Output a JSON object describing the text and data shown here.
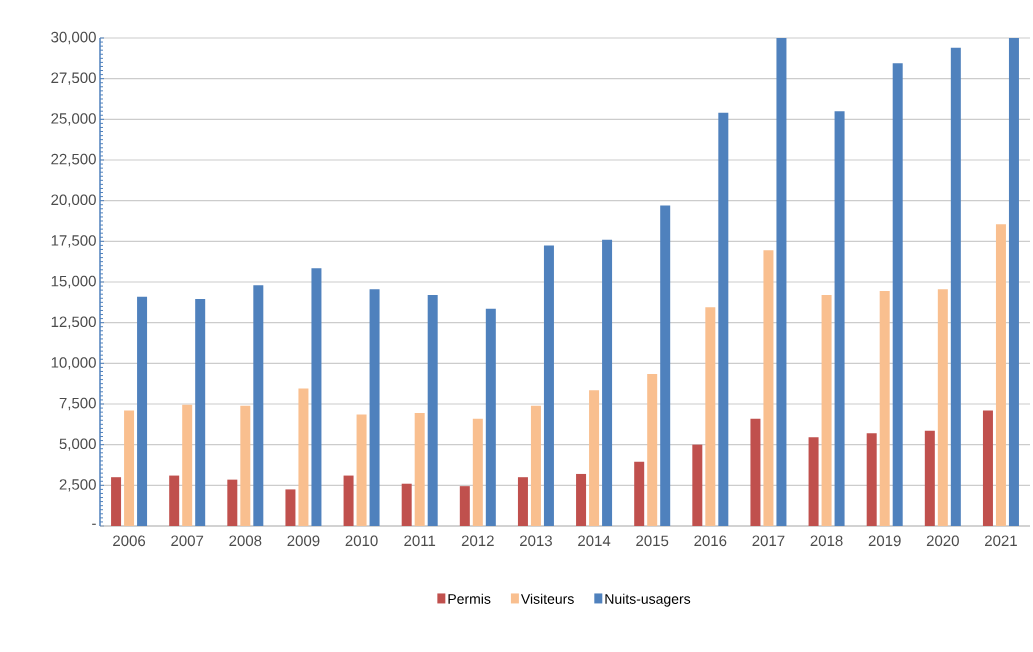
{
  "chart_data": {
    "type": "bar",
    "categories": [
      "2006",
      "2007",
      "2008",
      "2009",
      "2010",
      "2011",
      "2012",
      "2013",
      "2014",
      "2015",
      "2016",
      "2017",
      "2018",
      "2019",
      "2020",
      "2021"
    ],
    "series": [
      {
        "name": "Permis",
        "color": "#c0504d",
        "values": [
          3000,
          3100,
          2850,
          2250,
          3100,
          2600,
          2450,
          3000,
          3200,
          3950,
          5000,
          6600,
          5450,
          5700,
          5850,
          7100
        ]
      },
      {
        "name": "Visiteurs",
        "color": "#f9bf8f",
        "values": [
          7100,
          7450,
          7400,
          8450,
          6850,
          6950,
          6600,
          7400,
          8350,
          9350,
          13450,
          16950,
          14200,
          14450,
          14550,
          18550
        ]
      },
      {
        "name": "Nuits-usagers",
        "color": "#4f81bd",
        "values": [
          14100,
          13950,
          14800,
          15850,
          14550,
          14200,
          13350,
          17250,
          17600,
          19700,
          25400,
          30000,
          25500,
          28450,
          29400,
          30000
        ]
      }
    ],
    "ylim": [
      0,
      30000
    ],
    "yticks": [
      {
        "value": 0,
        "label": "-"
      },
      {
        "value": 2500,
        "label": "2,500"
      },
      {
        "value": 5000,
        "label": "5,000"
      },
      {
        "value": 7500,
        "label": "7,500"
      },
      {
        "value": 10000,
        "label": "10,000"
      },
      {
        "value": 12500,
        "label": "12,500"
      },
      {
        "value": 15000,
        "label": "15,000"
      },
      {
        "value": 17500,
        "label": "17,500"
      },
      {
        "value": 20000,
        "label": "20,000"
      },
      {
        "value": 22500,
        "label": "22,500"
      },
      {
        "value": 25000,
        "label": "25,000"
      },
      {
        "value": 27500,
        "label": "27,500"
      },
      {
        "value": 30000,
        "label": "30,000"
      }
    ],
    "grid": "y",
    "legend": "bottom"
  }
}
